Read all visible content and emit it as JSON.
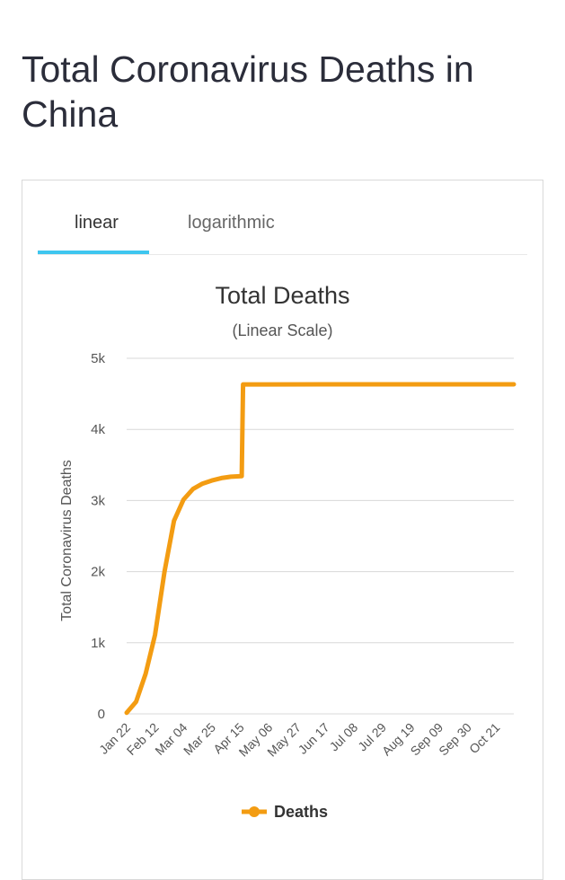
{
  "page": {
    "title": "Total Coronavirus Deaths in China"
  },
  "tabs": [
    {
      "label": "linear",
      "active": true
    },
    {
      "label": "logarithmic",
      "active": false
    }
  ],
  "colors": {
    "series": "#f39c12",
    "accent": "#3ec6ef",
    "grid": "#d8d8d8"
  },
  "chart_data": {
    "type": "line",
    "title": "Total Deaths",
    "subtitle": "(Linear Scale)",
    "ylabel": "Total Coronavirus Deaths",
    "xlabel": "",
    "ylim": [
      0,
      5000
    ],
    "yticks": [
      0,
      1000,
      2000,
      3000,
      4000,
      5000
    ],
    "ytick_labels": [
      "0",
      "1k",
      "2k",
      "3k",
      "4k",
      "5k"
    ],
    "xlim": [
      "2020-01-22",
      "2020-11-03"
    ],
    "xtick_labels": [
      "Jan 22",
      "Feb 12",
      "Mar 04",
      "Mar 25",
      "Apr 15",
      "May 06",
      "May 27",
      "Jun 17",
      "Jul 08",
      "Jul 29",
      "Aug 19",
      "Sep 09",
      "Sep 30",
      "Oct 21"
    ],
    "grid": true,
    "legend": "bottom",
    "series": [
      {
        "name": "Deaths",
        "points": [
          [
            "2020-01-22",
            17
          ],
          [
            "2020-01-29",
            170
          ],
          [
            "2020-02-05",
            563
          ],
          [
            "2020-02-12",
            1113
          ],
          [
            "2020-02-19",
            2004
          ],
          [
            "2020-02-26",
            2715
          ],
          [
            "2020-03-04",
            3013
          ],
          [
            "2020-03-11",
            3162
          ],
          [
            "2020-03-18",
            3237
          ],
          [
            "2020-03-25",
            3281
          ],
          [
            "2020-04-01",
            3316
          ],
          [
            "2020-04-08",
            3335
          ],
          [
            "2020-04-16",
            3342
          ],
          [
            "2020-04-17",
            4632
          ],
          [
            "2020-05-06",
            4633
          ],
          [
            "2020-06-17",
            4634
          ],
          [
            "2020-08-19",
            4634
          ],
          [
            "2020-11-03",
            4634
          ]
        ]
      }
    ]
  }
}
